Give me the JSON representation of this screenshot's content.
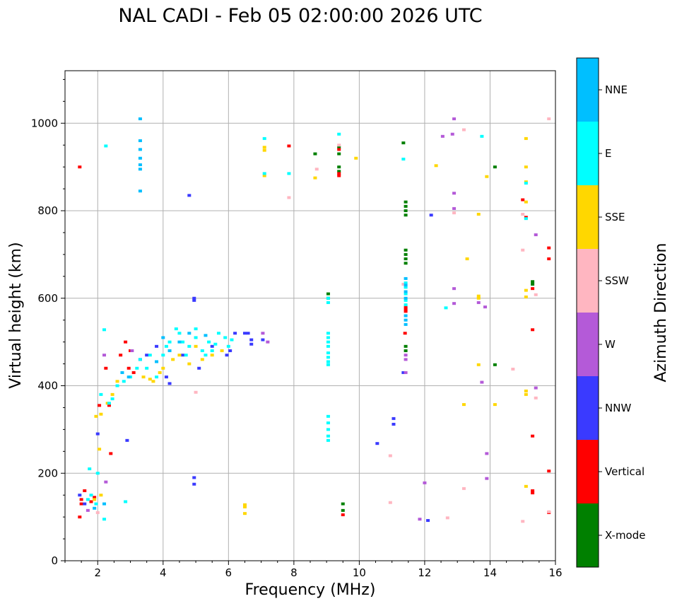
{
  "chart_data": {
    "type": "scatter",
    "title": "NAL CADI - Feb 05 02:00:00 2026 UTC",
    "xlabel": "Frequency (MHz)",
    "ylabel": "Virtual height (km)",
    "xlim": [
      1,
      16
    ],
    "ylim": [
      0,
      1120
    ],
    "xticks": [
      2,
      4,
      6,
      8,
      10,
      12,
      14,
      16
    ],
    "yticks": [
      0,
      200,
      400,
      600,
      800,
      1000
    ],
    "grid": true,
    "colorbar": {
      "label": "Azimuth Direction",
      "categories": [
        "X-mode",
        "Vertical",
        "NNW",
        "W",
        "SSW",
        "SSE",
        "E",
        "NNE"
      ],
      "colors": [
        "#008000",
        "#ff0000",
        "#3a3aff",
        "#b45ad8",
        "#ffb6c1",
        "#ffd700",
        "#00ffff",
        "#00bfff"
      ]
    },
    "series": [
      {
        "name": "X-mode",
        "points": [
          [
            9.5,
            130
          ],
          [
            9.5,
            115
          ],
          [
            9.38,
            945
          ],
          [
            9.38,
            930
          ],
          [
            9.38,
            900
          ],
          [
            9.38,
            890
          ],
          [
            8.65,
            930
          ],
          [
            9.05,
            610
          ],
          [
            9.05,
            600
          ],
          [
            11.42,
            820
          ],
          [
            11.42,
            810
          ],
          [
            11.42,
            800
          ],
          [
            11.42,
            790
          ],
          [
            11.42,
            710
          ],
          [
            11.42,
            700
          ],
          [
            11.42,
            690
          ],
          [
            11.42,
            680
          ],
          [
            11.42,
            490
          ],
          [
            11.42,
            480
          ],
          [
            11.35,
            955
          ],
          [
            14.15,
            900
          ],
          [
            14.15,
            448
          ],
          [
            15.3,
            638
          ],
          [
            15.3,
            632
          ]
        ]
      },
      {
        "name": "Vertical",
        "points": [
          [
            1.45,
            900
          ],
          [
            9.5,
            105
          ],
          [
            9.38,
            940
          ],
          [
            9.38,
            880
          ],
          [
            9.38,
            885
          ],
          [
            11.42,
            580
          ],
          [
            11.42,
            575
          ],
          [
            11.42,
            570
          ],
          [
            11.4,
            520
          ],
          [
            15.3,
            160
          ],
          [
            15.3,
            155
          ],
          [
            15.3,
            285
          ],
          [
            15.3,
            622
          ],
          [
            15.3,
            528
          ],
          [
            15.1,
            785
          ],
          [
            15.8,
            715
          ],
          [
            15.8,
            690
          ],
          [
            15.8,
            205
          ],
          [
            15.8,
            110
          ],
          [
            15.0,
            825
          ],
          [
            7.85,
            948
          ],
          [
            1.5,
            140
          ],
          [
            1.5,
            130
          ],
          [
            1.6,
            160
          ],
          [
            1.8,
            135
          ],
          [
            1.9,
            145
          ],
          [
            2.05,
            355
          ],
          [
            2.35,
            355
          ],
          [
            2.85,
            500
          ],
          [
            3.0,
            480
          ],
          [
            2.7,
            470
          ],
          [
            2.25,
            440
          ],
          [
            2.95,
            440
          ],
          [
            3.1,
            430
          ],
          [
            2.4,
            245
          ],
          [
            1.45,
            100
          ]
        ]
      },
      {
        "name": "NNW",
        "points": [
          [
            4.95,
            600
          ],
          [
            4.95,
            595
          ],
          [
            4.95,
            190
          ],
          [
            4.95,
            175
          ],
          [
            4.8,
            835
          ],
          [
            6.6,
            520
          ],
          [
            6.7,
            505
          ],
          [
            6.7,
            495
          ],
          [
            6.5,
            520
          ],
          [
            6.2,
            520
          ],
          [
            5.95,
            470
          ],
          [
            6.05,
            480
          ],
          [
            10.55,
            268
          ],
          [
            11.05,
            325
          ],
          [
            11.05,
            312
          ],
          [
            11.35,
            430
          ],
          [
            12.1,
            92
          ],
          [
            12.2,
            790
          ],
          [
            7.05,
            505
          ],
          [
            4.1,
            420
          ],
          [
            4.2,
            405
          ],
          [
            3.3,
            460
          ],
          [
            2.9,
            275
          ],
          [
            3.5,
            470
          ],
          [
            3.8,
            490
          ],
          [
            4.6,
            470
          ],
          [
            5.1,
            440
          ],
          [
            5.5,
            490
          ],
          [
            2.0,
            290
          ],
          [
            1.45,
            150
          ],
          [
            1.6,
            130
          ]
        ]
      },
      {
        "name": "W",
        "points": [
          [
            12.9,
            1010
          ],
          [
            12.85,
            975
          ],
          [
            12.55,
            970
          ],
          [
            12.9,
            840
          ],
          [
            12.9,
            805
          ],
          [
            12.9,
            622
          ],
          [
            12.9,
            588
          ],
          [
            13.65,
            590
          ],
          [
            13.85,
            580
          ],
          [
            13.75,
            408
          ],
          [
            13.9,
            245
          ],
          [
            13.9,
            188
          ],
          [
            12.0,
            178
          ],
          [
            11.85,
            95
          ],
          [
            15.4,
            745
          ],
          [
            15.4,
            395
          ],
          [
            11.42,
            470
          ],
          [
            11.42,
            460
          ],
          [
            7.05,
            520
          ],
          [
            7.2,
            500
          ],
          [
            3.05,
            480
          ],
          [
            1.7,
            115
          ],
          [
            2.25,
            180
          ],
          [
            11.42,
            430
          ],
          [
            2.2,
            470
          ]
        ]
      },
      {
        "name": "SSW",
        "points": [
          [
            9.38,
            950
          ],
          [
            15.0,
            710
          ],
          [
            15.0,
            90
          ],
          [
            15.4,
            608
          ],
          [
            15.4,
            372
          ],
          [
            15.8,
            1010
          ],
          [
            14.7,
            438
          ],
          [
            13.2,
            985
          ],
          [
            12.7,
            98
          ],
          [
            13.2,
            165
          ],
          [
            12.9,
            795
          ],
          [
            10.95,
            240
          ],
          [
            10.95,
            133
          ],
          [
            11.35,
            632
          ],
          [
            15.0,
            792
          ],
          [
            8.7,
            895
          ],
          [
            7.85,
            830
          ],
          [
            5.0,
            385
          ],
          [
            15.8,
            112
          ],
          [
            2.0,
            110
          ]
        ]
      },
      {
        "name": "SSE",
        "points": [
          [
            6.5,
            128
          ],
          [
            6.5,
            123
          ],
          [
            6.5,
            108
          ],
          [
            7.1,
            945
          ],
          [
            7.1,
            938
          ],
          [
            7.1,
            880
          ],
          [
            8.65,
            875
          ],
          [
            9.9,
            920
          ],
          [
            12.35,
            903
          ],
          [
            13.3,
            690
          ],
          [
            13.65,
            605
          ],
          [
            13.65,
            600
          ],
          [
            13.65,
            448
          ],
          [
            13.9,
            878
          ],
          [
            13.65,
            792
          ],
          [
            14.15,
            357
          ],
          [
            13.2,
            357
          ],
          [
            15.1,
            965
          ],
          [
            15.1,
            900
          ],
          [
            15.1,
            866
          ],
          [
            15.1,
            820
          ],
          [
            15.1,
            618
          ],
          [
            15.1,
            603
          ],
          [
            15.1,
            388
          ],
          [
            15.1,
            380
          ],
          [
            15.1,
            170
          ],
          [
            3.4,
            420
          ],
          [
            3.6,
            415
          ],
          [
            3.9,
            430
          ],
          [
            4.3,
            460
          ],
          [
            4.5,
            470
          ],
          [
            4.0,
            440
          ],
          [
            3.7,
            410
          ],
          [
            5.2,
            460
          ],
          [
            5.5,
            470
          ],
          [
            5.8,
            480
          ],
          [
            2.45,
            380
          ],
          [
            2.3,
            360
          ],
          [
            2.1,
            335
          ],
          [
            1.9,
            140
          ],
          [
            2.1,
            150
          ],
          [
            2.05,
            255
          ],
          [
            1.95,
            330
          ],
          [
            2.6,
            410
          ],
          [
            5.0,
            490
          ],
          [
            4.8,
            450
          ]
        ]
      },
      {
        "name": "E",
        "points": [
          [
            9.05,
            520
          ],
          [
            9.05,
            510
          ],
          [
            9.05,
            500
          ],
          [
            9.05,
            490
          ],
          [
            9.05,
            475
          ],
          [
            9.05,
            465
          ],
          [
            9.05,
            455
          ],
          [
            9.05,
            448
          ],
          [
            9.05,
            600
          ],
          [
            9.05,
            590
          ],
          [
            9.05,
            330
          ],
          [
            9.05,
            315
          ],
          [
            9.05,
            300
          ],
          [
            9.05,
            285
          ],
          [
            9.05,
            275
          ],
          [
            9.38,
            975
          ],
          [
            11.42,
            635
          ],
          [
            11.42,
            625
          ],
          [
            11.42,
            610
          ],
          [
            11.42,
            595
          ],
          [
            11.42,
            585
          ],
          [
            12.65,
            578
          ],
          [
            11.35,
            918
          ],
          [
            13.75,
            970
          ],
          [
            15.1,
            782
          ],
          [
            15.1,
            863
          ],
          [
            7.85,
            885
          ],
          [
            7.1,
            965
          ],
          [
            7.1,
            885
          ],
          [
            2.25,
            948
          ],
          [
            2.2,
            528
          ],
          [
            2.2,
            95
          ],
          [
            2.85,
            135
          ],
          [
            3.3,
            460
          ],
          [
            3.5,
            440
          ],
          [
            3.8,
            420
          ],
          [
            4.0,
            470
          ],
          [
            4.2,
            500
          ],
          [
            4.5,
            520
          ],
          [
            4.8,
            490
          ],
          [
            5.0,
            510
          ],
          [
            5.2,
            480
          ],
          [
            5.4,
            500
          ],
          [
            5.6,
            495
          ],
          [
            5.9,
            510
          ],
          [
            6.1,
            505
          ],
          [
            3.0,
            420
          ],
          [
            2.8,
            410
          ],
          [
            3.2,
            440
          ],
          [
            4.4,
            530
          ],
          [
            4.6,
            500
          ],
          [
            5.3,
            470
          ],
          [
            5.7,
            520
          ],
          [
            4.1,
            490
          ],
          [
            4.7,
            470
          ],
          [
            5.0,
            530
          ],
          [
            5.5,
            480
          ],
          [
            6.0,
            490
          ],
          [
            3.6,
            470
          ],
          [
            2.45,
            370
          ],
          [
            2.35,
            360
          ],
          [
            1.95,
            130
          ],
          [
            1.8,
            150
          ],
          [
            1.7,
            140
          ],
          [
            2.0,
            200
          ],
          [
            1.75,
            210
          ],
          [
            2.6,
            400
          ],
          [
            2.1,
            380
          ]
        ]
      },
      {
        "name": "NNE",
        "points": [
          [
            3.3,
            1010
          ],
          [
            3.3,
            960
          ],
          [
            3.3,
            940
          ],
          [
            3.3,
            920
          ],
          [
            3.3,
            905
          ],
          [
            3.3,
            895
          ],
          [
            3.3,
            845
          ],
          [
            11.42,
            645
          ],
          [
            11.42,
            630
          ],
          [
            11.42,
            615
          ],
          [
            11.42,
            600
          ],
          [
            11.42,
            560
          ],
          [
            11.42,
            550
          ],
          [
            11.42,
            540
          ],
          [
            2.95,
            420
          ],
          [
            2.75,
            430
          ],
          [
            4.2,
            480
          ],
          [
            4.0,
            510
          ],
          [
            3.8,
            455
          ],
          [
            4.5,
            500
          ],
          [
            4.8,
            520
          ],
          [
            5.3,
            515
          ],
          [
            1.9,
            120
          ],
          [
            2.2,
            130
          ]
        ]
      }
    ]
  }
}
